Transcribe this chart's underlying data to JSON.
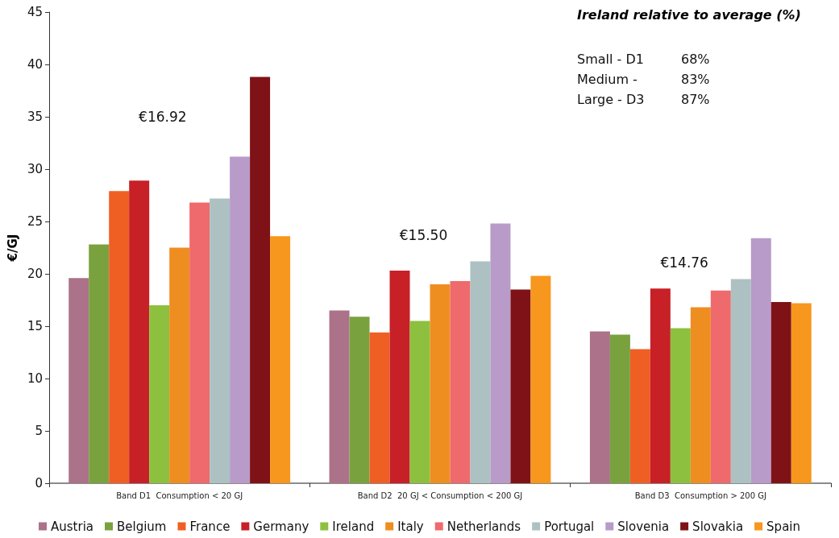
{
  "chart_data": {
    "type": "bar",
    "ylabel": "€/GJ",
    "categories": [
      "Band D1  Consumption < 20 GJ",
      "Band D2  20 GJ < Consumption < 200 GJ",
      "Band D3  Consumption > 200 GJ"
    ],
    "series": [
      {
        "name": "Austria",
        "color": "#ab7289",
        "values": [
          19.6,
          16.5,
          14.5
        ]
      },
      {
        "name": "Belgium",
        "color": "#79a23f",
        "values": [
          22.8,
          15.9,
          14.2
        ]
      },
      {
        "name": "France",
        "color": "#ef5f24",
        "values": [
          27.9,
          14.4,
          12.8
        ]
      },
      {
        "name": "Germany",
        "color": "#c72027",
        "values": [
          28.9,
          20.3,
          18.6
        ]
      },
      {
        "name": "Ireland",
        "color": "#8dc03f",
        "values": [
          17.0,
          15.5,
          14.8
        ]
      },
      {
        "name": "Italy",
        "color": "#ee8e21",
        "values": [
          22.5,
          19.0,
          16.8
        ]
      },
      {
        "name": "Netherlands",
        "color": "#ef6a6c",
        "values": [
          26.8,
          19.3,
          18.4
        ]
      },
      {
        "name": "Portugal",
        "color": "#adc1c3",
        "values": [
          27.2,
          21.2,
          19.5
        ]
      },
      {
        "name": "Slovenia",
        "color": "#b89bc8",
        "values": [
          31.2,
          24.8,
          23.4
        ]
      },
      {
        "name": "Slovakia",
        "color": "#7f1217",
        "values": [
          38.8,
          18.5,
          17.3
        ]
      },
      {
        "name": "Spain",
        "color": "#f7971d",
        "values": [
          23.6,
          19.8,
          17.2
        ]
      }
    ],
    "ylim": [
      0,
      45
    ],
    "yticks": [
      0,
      5,
      10,
      15,
      20,
      25,
      30,
      35,
      40,
      45
    ],
    "grid": false,
    "legend": "bottom",
    "annotations": [
      "€16.92",
      "€15.50",
      "€14.76",
      "Ireland relative to average (%)",
      "Small - D1",
      "68%",
      "Medium -",
      "83%",
      "Large - D3",
      "87%"
    ]
  }
}
